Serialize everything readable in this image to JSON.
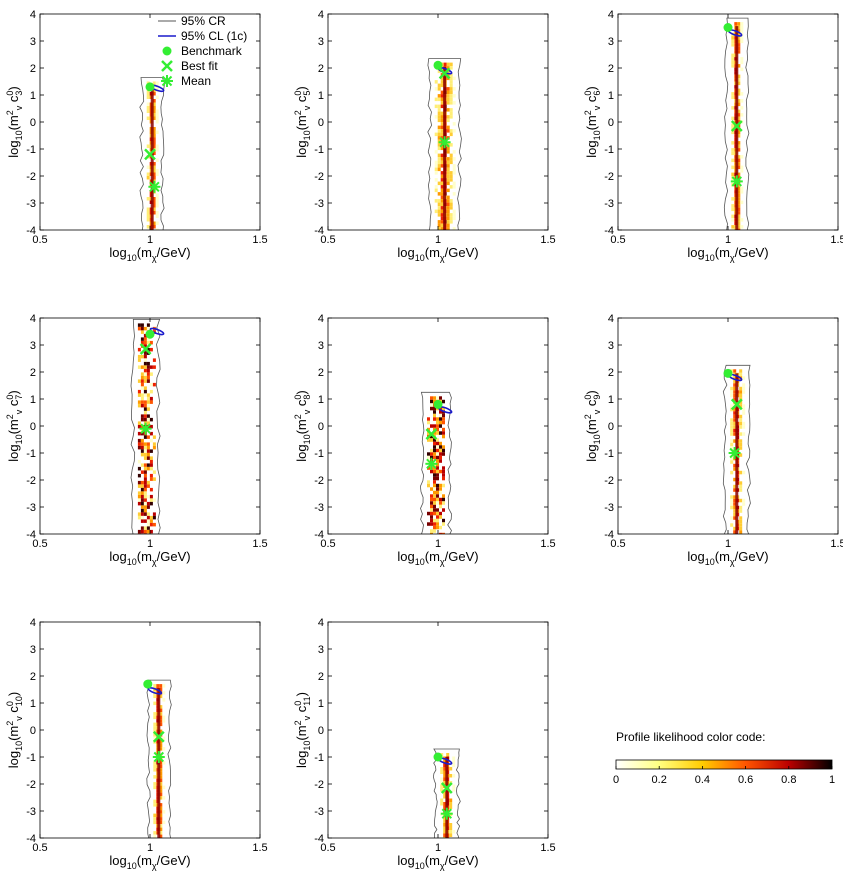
{
  "figure_title": "",
  "legend": {
    "cr_label": "95% CR",
    "cl_label": "95% CL (1c)",
    "benchmark_label": "Benchmark",
    "bestfit_label": "Best fit",
    "mean_label": "Mean"
  },
  "colors": {
    "cr_contour": "#555555",
    "cl_contour": "#1a1acc",
    "markers": "#33ee33"
  },
  "colorbar": {
    "title": "Profile likelihood color code:",
    "ticks": [
      "0",
      "0.2",
      "0.4",
      "0.6",
      "0.8",
      "1"
    ],
    "tick_values": [
      0,
      0.2,
      0.4,
      0.6,
      0.8,
      1
    ],
    "range": [
      0,
      1
    ]
  },
  "chart_data": [
    {
      "type": "heatmap",
      "name": "c3",
      "title": "",
      "xlabel": "log10(mχ/GeV)",
      "ylabel": "log10(m²v c⁰3)",
      "xlim": [
        0.5,
        1.5
      ],
      "ylim": [
        -4,
        4
      ],
      "xticks": [
        "0.5",
        "1",
        "1.5"
      ],
      "xtick_values": [
        0.5,
        1,
        1.5
      ],
      "yticks": [
        "-4",
        "-3",
        "-2",
        "-1",
        "0",
        "1",
        "2",
        "3",
        "4"
      ],
      "ytick_values": [
        -4,
        -3,
        -2,
        -1,
        0,
        1,
        2,
        3,
        4
      ],
      "band_center": 1.01,
      "band_width": 0.05,
      "ymax": 1.5,
      "density": "medium",
      "benchmark": [
        1.0,
        1.3
      ],
      "bestfit": [
        1.0,
        -1.2
      ],
      "mean": [
        1.02,
        -2.4
      ],
      "cl_y": 1.25
    },
    {
      "type": "heatmap",
      "name": "c5",
      "title": "",
      "xlabel": "log10(mχ/GeV)",
      "ylabel": "log10(m²v c⁰5)",
      "xlim": [
        0.5,
        1.5
      ],
      "ylim": [
        -4,
        4
      ],
      "xticks": [
        "0.5",
        "1",
        "1.5"
      ],
      "xtick_values": [
        0.5,
        1,
        1.5
      ],
      "yticks": [
        "-4",
        "-3",
        "-2",
        "-1",
        "0",
        "1",
        "2",
        "3",
        "4"
      ],
      "ytick_values": [
        -4,
        -3,
        -2,
        -1,
        0,
        1,
        2,
        3,
        4
      ],
      "band_center": 1.03,
      "band_width": 0.09,
      "ymax": 2.2,
      "density": "high",
      "benchmark": [
        1.0,
        2.1
      ],
      "bestfit": [
        1.03,
        1.8
      ],
      "mean": [
        1.03,
        -0.75
      ],
      "cl_y": 1.9
    },
    {
      "type": "heatmap",
      "name": "c6",
      "title": "",
      "xlabel": "log10(mχ/GeV)",
      "ylabel": "log10(m²v c⁰6)",
      "xlim": [
        0.5,
        1.5
      ],
      "ylim": [
        -4,
        4
      ],
      "xticks": [
        "0.5",
        "1",
        "1.5"
      ],
      "xtick_values": [
        0.5,
        1,
        1.5
      ],
      "yticks": [
        "-4",
        "-3",
        "-2",
        "-1",
        "0",
        "1",
        "2",
        "3",
        "4"
      ],
      "ytick_values": [
        -4,
        -3,
        -2,
        -1,
        0,
        1,
        2,
        3,
        4
      ],
      "band_center": 1.04,
      "band_width": 0.05,
      "ymax": 3.7,
      "density": "high",
      "benchmark": [
        1.0,
        3.5
      ],
      "bestfit": [
        1.04,
        -0.15
      ],
      "mean": [
        1.04,
        -2.2
      ],
      "cl_y": 3.3
    },
    {
      "type": "heatmap",
      "name": "c7",
      "title": "",
      "xlabel": "log10(mχ/GeV)",
      "ylabel": "log10(m²v c⁰7)",
      "xlim": [
        0.5,
        1.5
      ],
      "ylim": [
        -4,
        4
      ],
      "xticks": [
        "0.5",
        "1",
        "1.5"
      ],
      "xtick_values": [
        0.5,
        1,
        1.5
      ],
      "yticks": [
        "-4",
        "-3",
        "-2",
        "-1",
        "0",
        "1",
        "2",
        "3",
        "4"
      ],
      "ytick_values": [
        -4,
        -3,
        -2,
        -1,
        0,
        1,
        2,
        3,
        4
      ],
      "band_center": 0.98,
      "band_width": 0.07,
      "ymax": 3.8,
      "density": "scatter",
      "benchmark": [
        1.0,
        3.4
      ],
      "bestfit": [
        0.98,
        2.85
      ],
      "mean": [
        0.98,
        -0.1
      ],
      "cl_y": 3.5
    },
    {
      "type": "heatmap",
      "name": "c8",
      "title": "",
      "xlabel": "log10(mχ/GeV)",
      "ylabel": "log10(m²v c⁰8)",
      "xlim": [
        0.5,
        1.5
      ],
      "ylim": [
        -4,
        4
      ],
      "xticks": [
        "0.5",
        "1",
        "1.5"
      ],
      "xtick_values": [
        0.5,
        1,
        1.5
      ],
      "yticks": [
        "-4",
        "-3",
        "-2",
        "-1",
        "0",
        "1",
        "2",
        "3",
        "4"
      ],
      "ytick_values": [
        -4,
        -3,
        -2,
        -1,
        0,
        1,
        2,
        3,
        4
      ],
      "band_center": 0.99,
      "band_width": 0.08,
      "ymax": 1.1,
      "density": "scatter",
      "benchmark": [
        1.0,
        0.8
      ],
      "bestfit": [
        0.97,
        -0.3
      ],
      "mean": [
        0.97,
        -1.4
      ],
      "cl_y": 0.6
    },
    {
      "type": "heatmap",
      "name": "c9",
      "title": "",
      "xlabel": "log10(mχ/GeV)",
      "ylabel": "log10(m²v c⁰9)",
      "xlim": [
        0.5,
        1.5
      ],
      "ylim": [
        -4,
        4
      ],
      "xticks": [
        "0.5",
        "1",
        "1.5"
      ],
      "xtick_values": [
        0.5,
        1,
        1.5
      ],
      "yticks": [
        "-4",
        "-3",
        "-2",
        "-1",
        "0",
        "1",
        "2",
        "3",
        "4"
      ],
      "ytick_values": [
        -4,
        -3,
        -2,
        -1,
        0,
        1,
        2,
        3,
        4
      ],
      "band_center": 1.04,
      "band_width": 0.06,
      "ymax": 2.1,
      "density": "medium",
      "benchmark": [
        1.0,
        1.95
      ],
      "bestfit": [
        1.04,
        0.8
      ],
      "mean": [
        1.03,
        -1.0
      ],
      "cl_y": 1.8
    },
    {
      "type": "heatmap",
      "name": "c10",
      "title": "",
      "xlabel": "log10(mχ/GeV)",
      "ylabel": "log10(m²v c⁰10)",
      "xlim": [
        0.5,
        1.5
      ],
      "ylim": [
        -4,
        4
      ],
      "xticks": [
        "0.5",
        "1",
        "1.5"
      ],
      "xtick_values": [
        0.5,
        1,
        1.5
      ],
      "yticks": [
        "-4",
        "-3",
        "-2",
        "-1",
        "0",
        "1",
        "2",
        "3",
        "4"
      ],
      "ytick_values": [
        -4,
        -3,
        -2,
        -1,
        0,
        1,
        2,
        3,
        4
      ],
      "band_center": 1.04,
      "band_width": 0.05,
      "ymax": 1.7,
      "density": "high",
      "benchmark": [
        0.99,
        1.7
      ],
      "bestfit": [
        1.04,
        -0.25
      ],
      "mean": [
        1.04,
        -1.0
      ],
      "cl_y": 1.45
    },
    {
      "type": "heatmap",
      "name": "c11",
      "title": "",
      "xlabel": "log10(mχ/GeV)",
      "ylabel": "log10(m²v c⁰11)",
      "xlim": [
        0.5,
        1.5
      ],
      "ylim": [
        -4,
        4
      ],
      "xticks": [
        "0.5",
        "1",
        "1.5"
      ],
      "xtick_values": [
        0.5,
        1,
        1.5
      ],
      "yticks": [
        "-4",
        "-3",
        "-2",
        "-1",
        "0",
        "1",
        "2",
        "3",
        "4"
      ],
      "ytick_values": [
        -4,
        -3,
        -2,
        -1,
        0,
        1,
        2,
        3,
        4
      ],
      "band_center": 1.04,
      "band_width": 0.06,
      "ymax": -0.85,
      "density": "high",
      "benchmark": [
        1.0,
        -1.0
      ],
      "bestfit": [
        1.04,
        -2.15
      ],
      "mean": [
        1.04,
        -3.1
      ],
      "cl_y": -1.15
    }
  ]
}
